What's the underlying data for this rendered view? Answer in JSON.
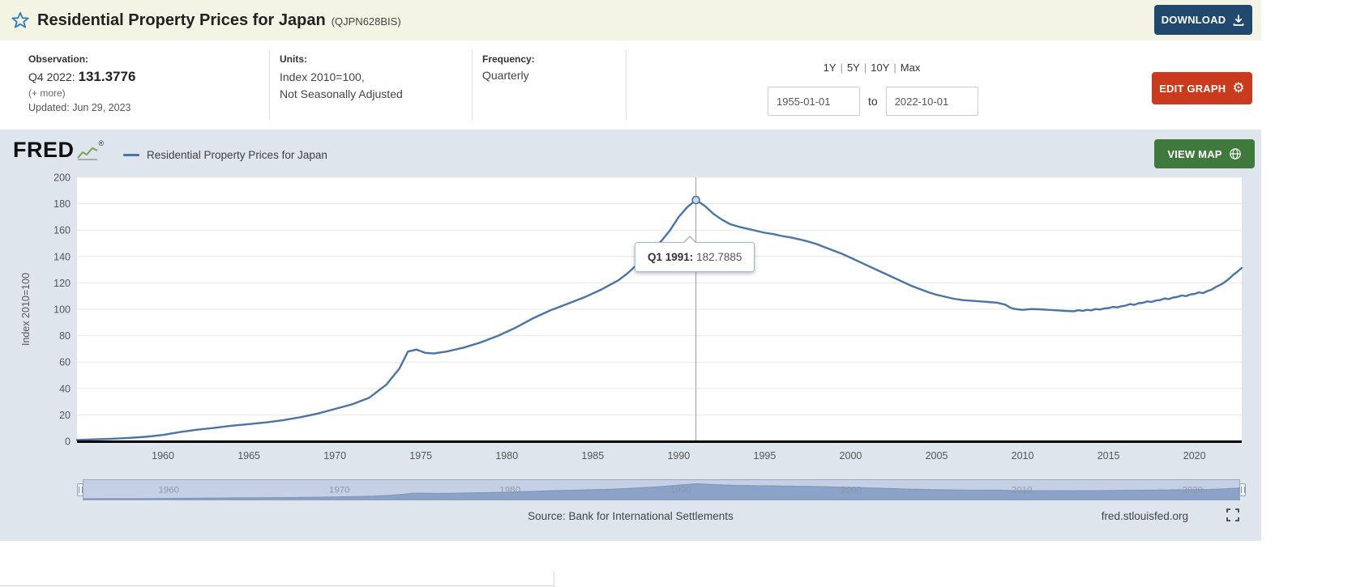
{
  "header": {
    "title": "Residential Property Prices for Japan",
    "series_id": "(QJPN628BIS)",
    "download_label": "DOWNLOAD"
  },
  "meta": {
    "observation_label": "Observation:",
    "observation_period": "Q4 2022:",
    "observation_value": "131.3776",
    "more_link": "(+ more)",
    "updated": "Updated: Jun 29, 2023",
    "units_label": "Units:",
    "units_line1": "Index 2010=100,",
    "units_line2": "Not Seasonally Adjusted",
    "frequency_label": "Frequency:",
    "frequency_value": "Quarterly",
    "ranges": [
      "1Y",
      "5Y",
      "10Y",
      "Max"
    ],
    "range_separator": "|",
    "date_from": "1955-01-01",
    "date_to_label": "to",
    "date_to": "2022-10-01",
    "edit_graph_label": "EDIT GRAPH"
  },
  "graph": {
    "logo_text": "FRED",
    "registered_mark": "®",
    "legend_label": "Residential Property Prices for Japan",
    "view_map_label": "VIEW MAP",
    "tooltip": {
      "label": "Q1 1991:",
      "value": "182.7885"
    },
    "source": "Source: Bank for International Settlements",
    "site_link": "fred.stlouisfed.org"
  },
  "icons": {
    "favorite": "star-outline",
    "download": "download-tray",
    "edit": "gear",
    "gear_glyph": "⚙",
    "map": "globe",
    "fullscreen": "expand-corners",
    "logo_mark": "sparkline-chart"
  },
  "colors": {
    "header_bg": "#f4f4e4",
    "download_button": "#21496e",
    "edit_button": "#c93b1c",
    "view_map_button": "#3f7a3c",
    "graph_bg": "#dfe5ed",
    "line": "#4a74a5",
    "star": "#2d7cc0"
  },
  "chart_data": {
    "type": "line",
    "title": "Residential Property Prices for Japan",
    "xlabel": "",
    "ylabel": "Index 2010=100",
    "ylim": [
      0,
      200
    ],
    "y_tick_step": 20,
    "x_range": [
      1955,
      2022.75
    ],
    "x_ticks": [
      1960,
      1965,
      1970,
      1975,
      1980,
      1985,
      1990,
      1995,
      2000,
      2005,
      2010,
      2015,
      2020
    ],
    "slider_ticks": [
      1960,
      1970,
      1980,
      1990,
      2000,
      2010,
      2020
    ],
    "grid": true,
    "legend_position": "top-left",
    "highlight": {
      "x": 1991.0,
      "y": 182.7885,
      "label": "Q1 1991"
    },
    "series": [
      {
        "name": "Residential Property Prices for Japan",
        "color": "#4a74a5",
        "points": [
          [
            1955,
            1.0
          ],
          [
            1956,
            1.4
          ],
          [
            1957,
            1.9
          ],
          [
            1958,
            2.5
          ],
          [
            1959,
            3.4
          ],
          [
            1960,
            4.8
          ],
          [
            1961,
            7.0
          ],
          [
            1962,
            8.8
          ],
          [
            1963,
            10.2
          ],
          [
            1964,
            11.8
          ],
          [
            1965,
            13.0
          ],
          [
            1966,
            14.3
          ],
          [
            1967,
            16.0
          ],
          [
            1968,
            18.2
          ],
          [
            1969,
            21.0
          ],
          [
            1970,
            24.5
          ],
          [
            1971,
            28.0
          ],
          [
            1972,
            33.0
          ],
          [
            1973,
            43.0
          ],
          [
            1973.75,
            55.0
          ],
          [
            1974.25,
            68.0
          ],
          [
            1974.75,
            69.5
          ],
          [
            1975.25,
            67.0
          ],
          [
            1975.75,
            66.5
          ],
          [
            1976.5,
            68.0
          ],
          [
            1977.5,
            71.0
          ],
          [
            1978.5,
            75.0
          ],
          [
            1979.5,
            80.0
          ],
          [
            1980.5,
            86.0
          ],
          [
            1981.5,
            93.0
          ],
          [
            1982.5,
            99.0
          ],
          [
            1983.5,
            104.0
          ],
          [
            1984.5,
            109.0
          ],
          [
            1985.5,
            115.0
          ],
          [
            1986.5,
            122.0
          ],
          [
            1987,
            127.0
          ],
          [
            1987.5,
            133.0
          ],
          [
            1988,
            139.0
          ],
          [
            1988.5,
            145.0
          ],
          [
            1989,
            152.0
          ],
          [
            1989.5,
            160.0
          ],
          [
            1990,
            170.0
          ],
          [
            1990.5,
            177.5
          ],
          [
            1991,
            182.7885
          ],
          [
            1991.5,
            178.5
          ],
          [
            1992,
            172.5
          ],
          [
            1992.5,
            168.0
          ],
          [
            1993,
            164.5
          ],
          [
            1993.5,
            162.5
          ],
          [
            1994,
            161.0
          ],
          [
            1994.5,
            159.5
          ],
          [
            1995,
            158.0
          ],
          [
            1995.5,
            157.0
          ],
          [
            1996,
            155.5
          ],
          [
            1996.5,
            154.5
          ],
          [
            1997,
            153.0
          ],
          [
            1997.5,
            151.5
          ],
          [
            1998,
            149.5
          ],
          [
            1998.5,
            147.0
          ],
          [
            1999,
            144.5
          ],
          [
            1999.5,
            142.0
          ],
          [
            2000,
            139.0
          ],
          [
            2000.5,
            136.0
          ],
          [
            2001,
            133.0
          ],
          [
            2001.5,
            130.0
          ],
          [
            2002,
            127.0
          ],
          [
            2002.5,
            124.0
          ],
          [
            2003,
            121.0
          ],
          [
            2003.5,
            118.0
          ],
          [
            2004,
            115.5
          ],
          [
            2004.5,
            113.0
          ],
          [
            2005,
            111.0
          ],
          [
            2005.5,
            109.5
          ],
          [
            2006,
            108.0
          ],
          [
            2006.5,
            107.0
          ],
          [
            2007,
            106.5
          ],
          [
            2007.5,
            106.0
          ],
          [
            2008,
            105.5
          ],
          [
            2008.5,
            105.0
          ],
          [
            2009,
            103.5
          ],
          [
            2009.25,
            101.5
          ],
          [
            2009.5,
            100.3
          ],
          [
            2010,
            99.6
          ],
          [
            2010.5,
            100.2
          ],
          [
            2011,
            100.0
          ],
          [
            2011.5,
            99.6
          ],
          [
            2012,
            99.2
          ],
          [
            2012.5,
            98.8
          ],
          [
            2013,
            98.5
          ],
          [
            2013.25,
            99.3
          ],
          [
            2013.5,
            98.8
          ],
          [
            2013.75,
            99.6
          ],
          [
            2014,
            99.2
          ],
          [
            2014.25,
            100.2
          ],
          [
            2014.5,
            99.8
          ],
          [
            2014.75,
            100.6
          ],
          [
            2015,
            100.9
          ],
          [
            2015.25,
            101.8
          ],
          [
            2015.5,
            101.4
          ],
          [
            2015.75,
            102.3
          ],
          [
            2016,
            102.8
          ],
          [
            2016.25,
            103.9
          ],
          [
            2016.5,
            103.4
          ],
          [
            2016.75,
            104.6
          ],
          [
            2017,
            104.9
          ],
          [
            2017.25,
            106.0
          ],
          [
            2017.5,
            105.5
          ],
          [
            2017.75,
            106.6
          ],
          [
            2018,
            107.0
          ],
          [
            2018.25,
            108.2
          ],
          [
            2018.5,
            107.7
          ],
          [
            2018.75,
            108.9
          ],
          [
            2019,
            109.3
          ],
          [
            2019.25,
            110.5
          ],
          [
            2019.5,
            110.0
          ],
          [
            2019.75,
            111.2
          ],
          [
            2020,
            111.6
          ],
          [
            2020.25,
            112.8
          ],
          [
            2020.5,
            112.3
          ],
          [
            2020.75,
            113.8
          ],
          [
            2021,
            115.0
          ],
          [
            2021.25,
            117.0
          ],
          [
            2021.5,
            118.5
          ],
          [
            2021.75,
            120.5
          ],
          [
            2022,
            123.0
          ],
          [
            2022.25,
            126.0
          ],
          [
            2022.5,
            128.5
          ],
          [
            2022.75,
            131.3776
          ]
        ]
      }
    ]
  }
}
